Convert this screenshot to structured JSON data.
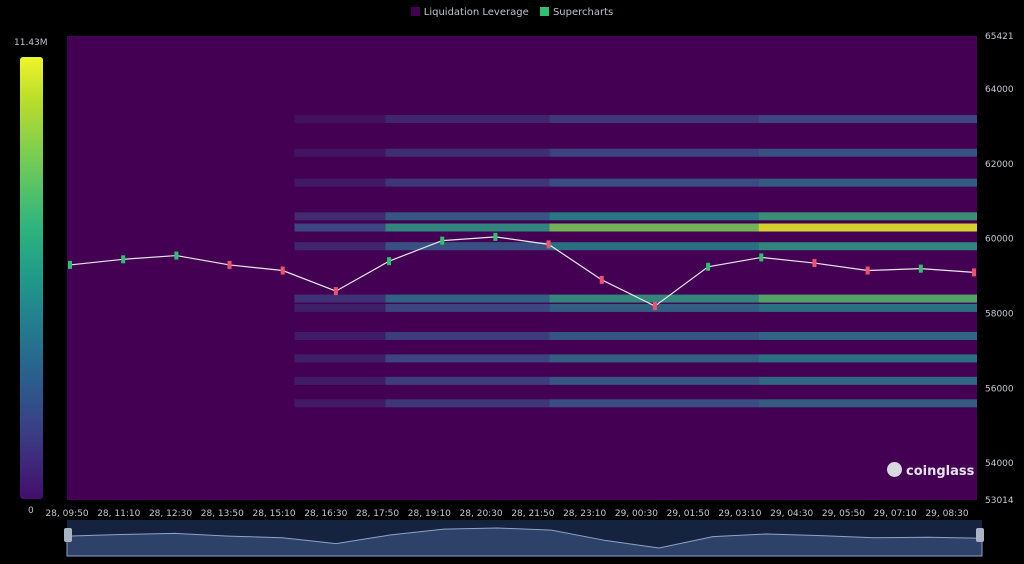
{
  "legend": [
    {
      "label": "Liquidation Leverage",
      "color": "#440154"
    },
    {
      "label": "Supercharts",
      "color": "#2fbf71"
    }
  ],
  "colorbar": {
    "max_label": "11.43M",
    "min_label": "0"
  },
  "watermark": "coinglass",
  "chart_data": {
    "type": "heatmap",
    "title": "",
    "legend_position": "top-center",
    "y_axis": {
      "min": 53014,
      "max": 65421,
      "side": "right",
      "ticks": [
        "65421",
        "64000",
        "62000",
        "60000",
        "58000",
        "56000",
        "54000",
        "53014"
      ]
    },
    "x_axis": {
      "ticks": [
        "28, 09:50",
        "28, 11:10",
        "28, 12:30",
        "28, 13:50",
        "28, 15:10",
        "28, 16:30",
        "28, 17:50",
        "28, 19:10",
        "28, 20:30",
        "28, 21:50",
        "28, 23:10",
        "29, 00:30",
        "29, 01:50",
        "29, 03:10",
        "29, 04:30",
        "29, 05:50",
        "29, 07:10",
        "29, 08:30"
      ]
    },
    "price_series": {
      "name": "Supercharts",
      "x": [
        "28, 09:50",
        "28, 11:10",
        "28, 12:30",
        "28, 13:50",
        "28, 15:10",
        "28, 16:30",
        "28, 17:50",
        "28, 19:10",
        "28, 20:30",
        "28, 21:50",
        "28, 23:10",
        "29, 00:30",
        "29, 01:50",
        "29, 03:10",
        "29, 04:30",
        "29, 05:50",
        "29, 07:10",
        "29, 08:30"
      ],
      "values": [
        59300,
        59450,
        59550,
        59300,
        59150,
        58600,
        59400,
        59950,
        60050,
        59850,
        58900,
        58200,
        59250,
        59500,
        59350,
        59150,
        59200,
        59100
      ]
    },
    "liquidation_bands": [
      {
        "price": 60300,
        "intensity": 1.0
      },
      {
        "price": 60600,
        "intensity": 0.6
      },
      {
        "price": 59800,
        "intensity": 0.55
      },
      {
        "price": 58400,
        "intensity": 0.7
      },
      {
        "price": 58150,
        "intensity": 0.45
      },
      {
        "price": 57400,
        "intensity": 0.4
      },
      {
        "price": 56800,
        "intensity": 0.45
      },
      {
        "price": 56200,
        "intensity": 0.4
      },
      {
        "price": 55600,
        "intensity": 0.35
      },
      {
        "price": 61500,
        "intensity": 0.35
      },
      {
        "price": 62300,
        "intensity": 0.3
      },
      {
        "price": 63200,
        "intensity": 0.25
      }
    ],
    "colorbar_range": [
      0,
      11430000
    ]
  }
}
